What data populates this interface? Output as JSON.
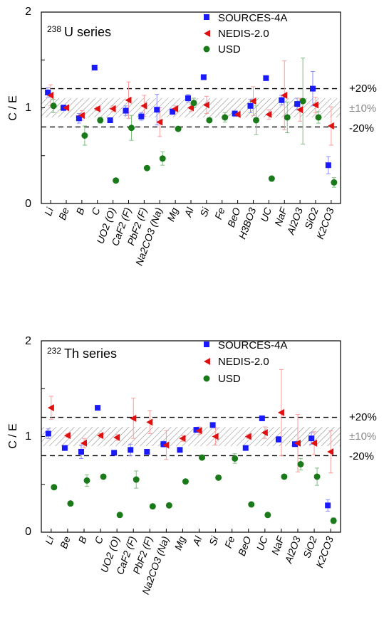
{
  "chart_data": [
    {
      "type": "scatter",
      "title": "238U series",
      "title_sup": "238",
      "title_main": "U series",
      "ylabel": "C / E",
      "ylim": [
        0,
        2
      ],
      "yticks": [
        "0",
        "1",
        "2"
      ],
      "band_label": "±10%",
      "line_labels": [
        "+20%",
        "-20%"
      ],
      "legend_position": "top-right",
      "categories": [
        "Li",
        "Be",
        "B",
        "C",
        "UO2 (O)",
        "CaF2 (F)",
        "PbF2 (F)",
        "Na2CO3 (Na)",
        "Mg",
        "Al",
        "Si",
        "Fe",
        "BeO",
        "H3BO3",
        "UC",
        "NaF",
        "Al2O3",
        "SiO2",
        "K2CO3"
      ],
      "series": [
        {
          "name": "SOURCES-4A",
          "color": "#1a1aff",
          "marker": "square",
          "values": [
            1.16,
            1.0,
            0.89,
            1.42,
            0.87,
            0.97,
            0.91,
            0.98,
            0.96,
            1.1,
            1.32,
            null,
            0.94,
            1.02,
            1.31,
            1.08,
            1.04,
            1.2,
            0.4
          ],
          "err": [
            0.05,
            0.03,
            0.05,
            0,
            0,
            0.05,
            0.04,
            0.16,
            0.03,
            0.04,
            0,
            null,
            0,
            0.07,
            0,
            0.05,
            0.06,
            0.18,
            0.09
          ]
        },
        {
          "name": "NEDIS-2.0",
          "color": "#e01010",
          "marker": "triangle-left",
          "values": [
            1.13,
            1.0,
            0.92,
            0.99,
            0.99,
            1.08,
            1.02,
            0.85,
            0.99,
            1.0,
            1.03,
            null,
            0.93,
            1.07,
            0.93,
            1.13,
            0.98,
            1.03,
            0.81
          ],
          "err": [
            0.11,
            0.02,
            0.05,
            0.02,
            0.03,
            0.19,
            0.11,
            0.15,
            0.03,
            0.04,
            0.09,
            null,
            0.02,
            0.15,
            0.05,
            0.36,
            0.12,
            0.08,
            0.2
          ]
        },
        {
          "name": "USD",
          "color": "#1a7a1a",
          "marker": "circle",
          "values": [
            1.02,
            null,
            0.71,
            0.87,
            0.24,
            0.79,
            0.37,
            0.47,
            0.78,
            1.05,
            0.87,
            0.9,
            null,
            0.87,
            0.26,
            0.9,
            1.07,
            0.9,
            0.22
          ],
          "err": [
            0.07,
            null,
            0.1,
            0.03,
            0,
            0.13,
            0,
            0.07,
            0,
            0.05,
            0,
            0.05,
            null,
            0.15,
            0,
            0.16,
            0.45,
            0.06,
            0.05
          ]
        }
      ]
    },
    {
      "type": "scatter",
      "title": "232Th series",
      "title_sup": "232",
      "title_main": "Th series",
      "ylabel": "C / E",
      "ylim": [
        0,
        2
      ],
      "yticks": [
        "0",
        "1",
        "2"
      ],
      "band_label": "±10%",
      "line_labels": [
        "+20%",
        "-20%"
      ],
      "legend_position": "top-right",
      "categories": [
        "Li",
        "Be",
        "B",
        "C",
        "UO2 (O)",
        "CaF2 (F)",
        "PbF2 (F)",
        "Na2CO3 (Na)",
        "Mg",
        "Al",
        "Si",
        "Fe",
        "BeO",
        "UC",
        "NaF",
        "Al2O3",
        "SiO2",
        "K2CO3"
      ],
      "series": [
        {
          "name": "SOURCES-4A",
          "color": "#1a1aff",
          "marker": "square",
          "values": [
            1.03,
            0.88,
            0.84,
            1.3,
            0.83,
            0.86,
            0.84,
            0.92,
            0.86,
            1.07,
            1.12,
            null,
            0.88,
            1.19,
            0.97,
            0.92,
            0.98,
            0.28
          ],
          "err": [
            0.05,
            0.02,
            0.07,
            0,
            0,
            0.06,
            0,
            0.03,
            0,
            0,
            0,
            null,
            0,
            0,
            0.03,
            0,
            0.06,
            0.06
          ]
        },
        {
          "name": "NEDIS-2.0",
          "color": "#e01010",
          "marker": "triangle-left",
          "values": [
            1.3,
            1.01,
            0.93,
            1.01,
            0.99,
            1.19,
            1.15,
            0.91,
            0.98,
            1.06,
            1.0,
            null,
            1.0,
            1.04,
            1.25,
            0.93,
            0.93,
            0.84
          ],
          "err": [
            0.12,
            0.02,
            0.05,
            0.02,
            0.03,
            0.21,
            0.12,
            0.15,
            0.03,
            0.04,
            0.09,
            null,
            0.02,
            0.06,
            0.45,
            0.3,
            0.12,
            0.22
          ]
        },
        {
          "name": "USD",
          "color": "#1a7a1a",
          "marker": "circle",
          "values": [
            0.47,
            0.3,
            0.54,
            0.58,
            0.18,
            0.55,
            0.27,
            0.28,
            0.53,
            0.78,
            0.57,
            0.77,
            0.29,
            0.18,
            0.58,
            0.71,
            0.58,
            0.12
          ],
          "err": [
            0,
            0,
            0.06,
            0,
            0,
            0.09,
            0,
            0,
            0,
            0,
            0,
            0.05,
            0,
            0,
            0,
            0.06,
            0.09,
            0.03
          ]
        }
      ]
    }
  ]
}
